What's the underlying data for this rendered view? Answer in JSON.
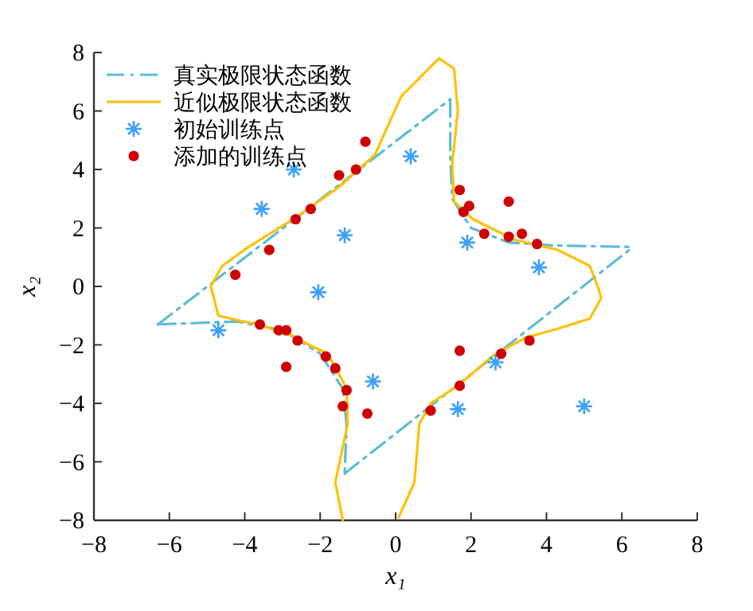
{
  "chart_data": {
    "type": "line",
    "xlabel": "x₁",
    "ylabel": "x₂",
    "xlim": [
      -8,
      8
    ],
    "ylim": [
      -8,
      8
    ],
    "xticks": [
      -8,
      -6,
      -4,
      -2,
      0,
      2,
      4,
      6,
      8
    ],
    "yticks": [
      -8,
      -6,
      -4,
      -2,
      0,
      2,
      4,
      6,
      8
    ],
    "grid": false,
    "legend": "top left",
    "series": [
      {
        "name": "真实极限状态函数",
        "color": "#5bbcd6",
        "line_style": "dashed",
        "marker": "none",
        "x": [
          -6.3,
          1.45
        ],
        "values": [
          -1.3,
          6.4
        ]
      },
      {
        "color": "#5bbcd6",
        "line_style": "dashed",
        "marker": "none",
        "x": [
          1.45,
          1.45,
          1.5,
          2.0,
          3.0,
          4.2,
          6.3
        ],
        "values": [
          6.4,
          4.5,
          3.0,
          2.0,
          1.5,
          1.4,
          1.35
        ]
      },
      {
        "color": "#5bbcd6",
        "line_style": "dashed",
        "marker": "none",
        "x": [
          -1.35,
          6.3
        ],
        "values": [
          -6.4,
          1.35
        ]
      },
      {
        "color": "#5bbcd6",
        "line_style": "dashed",
        "marker": "none",
        "x": [
          -6.3,
          -4.2,
          -3.0,
          -2.0,
          -1.4,
          -1.3,
          -1.35
        ],
        "values": [
          -1.3,
          -1.2,
          -1.5,
          -2.3,
          -3.5,
          -4.7,
          -6.4
        ]
      },
      {
        "name": "近似极限状态函数",
        "color": "#ffc000",
        "line_style": "solid",
        "marker": "none",
        "x": [
          -1.4,
          -1.6,
          -1.27,
          -1.3,
          -1.5,
          -1.8,
          -2.3,
          -2.7,
          -3.2,
          -3.6,
          -4.05,
          -4.7,
          -4.9,
          -4.6,
          -3.9,
          -2.65,
          -1.5,
          -0.55,
          0.15,
          1.15,
          1.55,
          1.65,
          1.5,
          1.55,
          2.05,
          3.15,
          4.3,
          5.15,
          5.4,
          5.45,
          5.15,
          4.3,
          3.45,
          2.6,
          1.65,
          0.93,
          0.63,
          0.5,
          0.08
        ],
        "values": [
          -8,
          -6.7,
          -4.7,
          -3.5,
          -3.0,
          -2.3,
          -2.0,
          -1.7,
          -1.5,
          -1.3,
          -1.2,
          -1.0,
          0,
          0.7,
          1.35,
          2.35,
          3.4,
          4.5,
          6.5,
          7.8,
          7.45,
          6.0,
          4.2,
          2.9,
          2.3,
          1.6,
          1.25,
          0.7,
          -0.15,
          -0.4,
          -1.1,
          -1.45,
          -1.75,
          -2.35,
          -3.4,
          -4.0,
          -4.7,
          -6.7,
          -7.9
        ]
      },
      {
        "name": "初始训练点",
        "type": "scatter",
        "color": "#3aa0ff",
        "marker": "cross",
        "x": [
          -2.7,
          -3.55,
          -1.35,
          -2.05,
          -4.7,
          -0.6,
          0.4,
          1.9,
          3.8,
          1.65,
          2.65,
          5.0
        ],
        "values": [
          4.0,
          2.65,
          1.75,
          -0.2,
          -1.5,
          -3.25,
          4.45,
          1.5,
          0.65,
          -4.2,
          -2.6,
          -4.1
        ]
      },
      {
        "name": "添加的训练点",
        "type": "scatter",
        "color": "#d00000",
        "marker": "circle",
        "x": [
          -4.25,
          -3.35,
          -2.65,
          -2.25,
          -1.5,
          -1.05,
          -0.8,
          1.7,
          1.95,
          1.8,
          3.0,
          2.35,
          3.0,
          3.35,
          3.75,
          -3.6,
          -3.1,
          -2.9,
          -2.6,
          -1.85,
          -1.6,
          -1.3,
          -1.4,
          -2.9,
          -0.75,
          0.93,
          1.7,
          1.7,
          2.8,
          3.55
        ],
        "values": [
          0.4,
          1.25,
          2.3,
          2.65,
          3.8,
          4.0,
          4.95,
          3.3,
          2.75,
          2.55,
          2.9,
          1.8,
          1.7,
          1.8,
          1.45,
          -1.3,
          -1.5,
          -1.5,
          -1.85,
          -2.4,
          -2.8,
          -3.55,
          -4.1,
          -2.75,
          -4.35,
          -4.25,
          -3.4,
          -2.2,
          -2.3,
          -1.85
        ]
      }
    ]
  }
}
